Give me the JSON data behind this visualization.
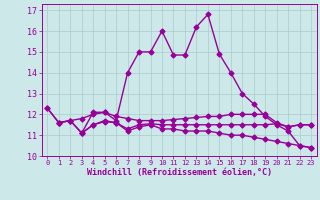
{
  "background_color": "#cce8e8",
  "grid_color": "#aacccc",
  "line_color": "#990099",
  "xlabel": "Windchill (Refroidissement éolien,°C)",
  "ylabel_values": [
    10,
    11,
    12,
    13,
    14,
    15,
    16,
    17
  ],
  "xlim": [
    -0.5,
    23.5
  ],
  "ylim": [
    10,
    17.3
  ],
  "series": [
    {
      "x": [
        0,
        1,
        2,
        3,
        4,
        5,
        6,
        7,
        8,
        9,
        10,
        11,
        12,
        13,
        14,
        15,
        16,
        17,
        18,
        19,
        20,
        21,
        22,
        23
      ],
      "y": [
        12.3,
        11.6,
        11.7,
        11.1,
        12.1,
        12.1,
        11.7,
        14.0,
        15.0,
        15.0,
        16.0,
        14.85,
        14.85,
        16.2,
        16.8,
        14.9,
        14.0,
        13.0,
        12.5,
        11.9,
        11.5,
        11.2,
        10.5,
        10.4
      ],
      "marker": "D",
      "markersize": 2.5,
      "linewidth": 1.0
    },
    {
      "x": [
        0,
        1,
        2,
        3,
        4,
        5,
        6,
        7,
        8,
        9,
        10,
        11,
        12,
        13,
        14,
        15,
        16,
        17,
        18,
        19,
        20,
        21,
        22,
        23
      ],
      "y": [
        12.3,
        11.6,
        11.7,
        11.8,
        12.0,
        12.1,
        11.9,
        11.8,
        11.7,
        11.7,
        11.7,
        11.75,
        11.8,
        11.85,
        11.9,
        11.9,
        12.0,
        12.0,
        12.0,
        12.0,
        11.6,
        11.4,
        11.5,
        11.5
      ],
      "marker": "D",
      "markersize": 2.5,
      "linewidth": 1.0
    },
    {
      "x": [
        1,
        2,
        3,
        4,
        5,
        6,
        7,
        8,
        9,
        10,
        11,
        12,
        13,
        14,
        15,
        16,
        17,
        18,
        19,
        20,
        21,
        22,
        23
      ],
      "y": [
        11.6,
        11.7,
        11.1,
        11.5,
        11.7,
        11.6,
        11.2,
        11.4,
        11.5,
        11.3,
        11.3,
        11.2,
        11.2,
        11.2,
        11.1,
        11.0,
        11.0,
        10.9,
        10.8,
        10.7,
        10.6,
        10.5,
        10.4
      ],
      "marker": "D",
      "markersize": 2.5,
      "linewidth": 1.0
    },
    {
      "x": [
        3,
        4,
        5,
        6,
        7,
        8,
        9,
        10,
        11,
        12,
        13,
        14,
        15,
        16,
        17,
        18,
        19,
        20,
        21,
        22,
        23
      ],
      "y": [
        11.1,
        11.5,
        11.65,
        11.6,
        11.3,
        11.5,
        11.55,
        11.5,
        11.5,
        11.5,
        11.5,
        11.5,
        11.5,
        11.5,
        11.5,
        11.5,
        11.5,
        11.55,
        11.4,
        11.5,
        11.5
      ],
      "marker": "D",
      "markersize": 2.5,
      "linewidth": 1.0
    }
  ]
}
